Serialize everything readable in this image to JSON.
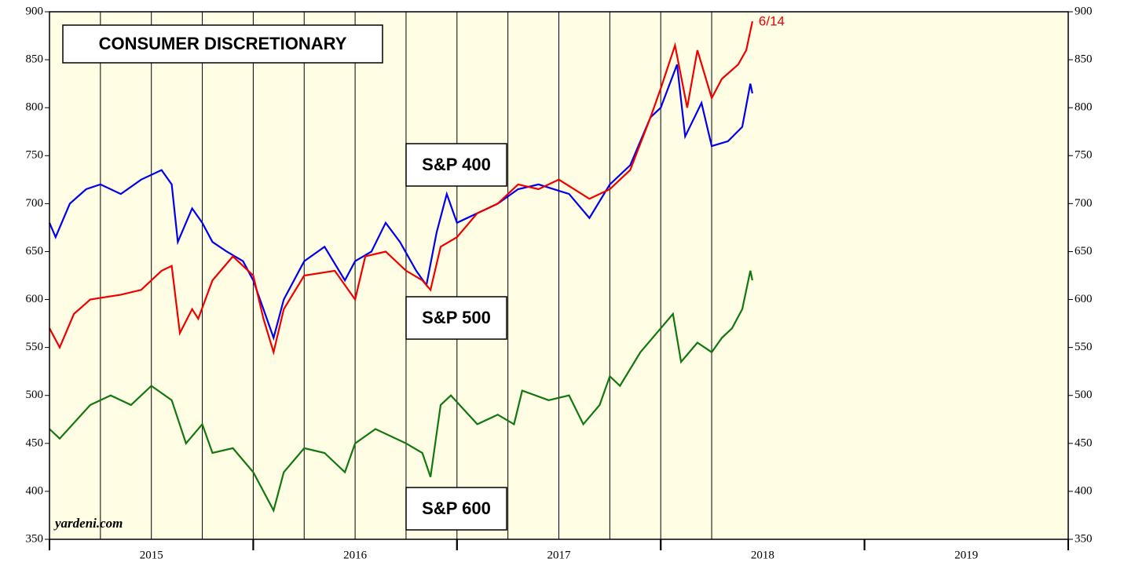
{
  "chart_data": {
    "type": "line",
    "title": "CONSUMER DISCRETIONARY",
    "source": "yardeni.com",
    "annotation": "6/14",
    "xlim": [
      2015,
      2020
    ],
    "xticks": [
      {
        "value": 2015.5,
        "label": "2015"
      },
      {
        "value": 2016.5,
        "label": "2016"
      },
      {
        "value": 2017.5,
        "label": "2017"
      },
      {
        "value": 2018.5,
        "label": "2018"
      },
      {
        "value": 2019.5,
        "label": "2019"
      }
    ],
    "vlines": [
      2015.25,
      2015.5,
      2015.75,
      2016.0,
      2016.25,
      2016.5,
      2016.75,
      2017.0,
      2017.25,
      2017.5,
      2017.75,
      2018.0,
      2018.25
    ],
    "ylim": [
      350,
      900
    ],
    "yticks": [
      350,
      400,
      450,
      500,
      550,
      600,
      650,
      700,
      750,
      800,
      850,
      900
    ],
    "background": "#fffde3",
    "series": [
      {
        "name": "S&P 400",
        "color": "#0000ee",
        "x": [
          2015.0,
          2015.03,
          2015.1,
          2015.18,
          2015.25,
          2015.35,
          2015.45,
          2015.55,
          2015.6,
          2015.63,
          2015.7,
          2015.75,
          2015.8,
          2015.87,
          2015.95,
          2016.0,
          2016.05,
          2016.1,
          2016.15,
          2016.25,
          2016.35,
          2016.45,
          2016.5,
          2016.58,
          2016.65,
          2016.72,
          2016.8,
          2016.85,
          2016.9,
          2016.95,
          2017.0,
          2017.1,
          2017.2,
          2017.3,
          2017.4,
          2017.55,
          2017.65,
          2017.75,
          2017.85,
          2017.95,
          2018.0,
          2018.08,
          2018.12,
          2018.2,
          2018.25,
          2018.33,
          2018.4,
          2018.44,
          2018.45
        ],
        "values": [
          680,
          665,
          700,
          715,
          720,
          710,
          725,
          735,
          720,
          660,
          695,
          680,
          660,
          650,
          640,
          620,
          590,
          560,
          600,
          640,
          655,
          620,
          640,
          650,
          680,
          660,
          630,
          615,
          670,
          710,
          680,
          690,
          700,
          715,
          720,
          710,
          685,
          720,
          740,
          790,
          800,
          845,
          770,
          805,
          760,
          765,
          780,
          825,
          815
        ]
      },
      {
        "name": "S&P 500",
        "color": "#ee0000",
        "x": [
          2015.0,
          2015.05,
          2015.12,
          2015.2,
          2015.35,
          2015.45,
          2015.55,
          2015.6,
          2015.64,
          2015.7,
          2015.73,
          2015.8,
          2015.9,
          2016.0,
          2016.05,
          2016.1,
          2016.15,
          2016.25,
          2016.4,
          2016.5,
          2016.55,
          2016.65,
          2016.75,
          2016.83,
          2016.87,
          2016.92,
          2017.0,
          2017.1,
          2017.2,
          2017.3,
          2017.4,
          2017.5,
          2017.65,
          2017.75,
          2017.85,
          2017.95,
          2018.0,
          2018.07,
          2018.13,
          2018.18,
          2018.25,
          2018.3,
          2018.38,
          2018.42,
          2018.45
        ],
        "values": [
          570,
          550,
          585,
          600,
          605,
          610,
          630,
          635,
          565,
          590,
          580,
          620,
          645,
          625,
          580,
          545,
          590,
          625,
          630,
          600,
          645,
          650,
          630,
          620,
          610,
          655,
          665,
          690,
          700,
          720,
          715,
          725,
          705,
          715,
          735,
          790,
          820,
          865,
          800,
          860,
          810,
          830,
          845,
          860,
          890
        ]
      },
      {
        "name": "S&P 600",
        "color": "#117711",
        "x": [
          2015.0,
          2015.05,
          2015.2,
          2015.3,
          2015.4,
          2015.5,
          2015.6,
          2015.67,
          2015.75,
          2015.8,
          2015.9,
          2016.0,
          2016.05,
          2016.1,
          2016.15,
          2016.25,
          2016.35,
          2016.45,
          2016.5,
          2016.6,
          2016.75,
          2016.83,
          2016.87,
          2016.92,
          2016.97,
          2017.1,
          2017.2,
          2017.28,
          2017.32,
          2017.45,
          2017.55,
          2017.62,
          2017.7,
          2017.75,
          2017.8,
          2017.9,
          2017.98,
          2018.06,
          2018.1,
          2018.18,
          2018.25,
          2018.3,
          2018.35,
          2018.4,
          2018.44,
          2018.45
        ],
        "values": [
          465,
          455,
          490,
          500,
          490,
          510,
          495,
          450,
          470,
          440,
          445,
          420,
          400,
          380,
          420,
          445,
          440,
          420,
          450,
          465,
          450,
          440,
          415,
          490,
          500,
          470,
          480,
          470,
          505,
          495,
          500,
          470,
          490,
          520,
          510,
          545,
          565,
          585,
          535,
          555,
          545,
          560,
          570,
          590,
          630,
          620
        ]
      }
    ]
  }
}
